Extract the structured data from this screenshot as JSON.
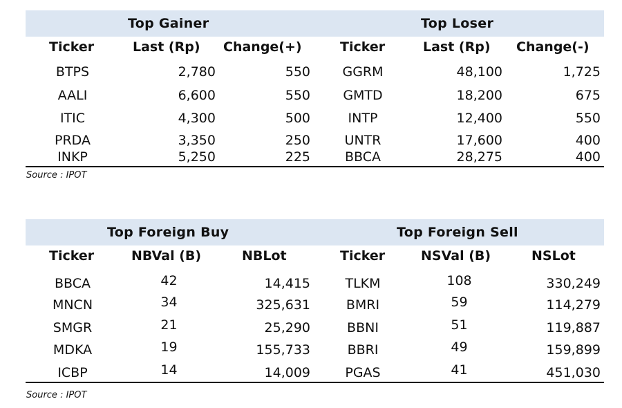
{
  "table1": {
    "left_title": "Top Gainer",
    "right_title": "Top Loser",
    "headers": [
      "Ticker",
      "Last (Rp)",
      "Change(+)",
      "Ticker",
      "Last (Rp)",
      "Change(-)"
    ],
    "rows": [
      [
        "BTPS",
        "2,780",
        "550",
        "GGRM",
        "48,100",
        "1,725"
      ],
      [
        "AALI",
        "6,600",
        "550",
        "GMTD",
        "18,200",
        "675"
      ],
      [
        "ITIC",
        "4,300",
        "500",
        "INTP",
        "12,400",
        "550"
      ],
      [
        "PRDA",
        "3,350",
        "250",
        "UNTR",
        "17,600",
        "400"
      ],
      [
        "INKP",
        "5,250",
        "225",
        "BBCA",
        "28,275",
        "400"
      ]
    ],
    "source": "Source : IPOT"
  },
  "table2": {
    "left_title": "Top Foreign Buy",
    "right_title": "Top Foreign Sell",
    "headers": [
      "Ticker",
      "NBVal (B)",
      "NBLot",
      "Ticker",
      "NSVal (B)",
      "NSLot"
    ],
    "rows": [
      [
        "BBCA",
        "42",
        "14,415",
        "TLKM",
        "108",
        "330,249"
      ],
      [
        "MNCN",
        "34",
        "325,631",
        "BMRI",
        "59",
        "114,279"
      ],
      [
        "SMGR",
        "21",
        "25,290",
        "BBNI",
        "51",
        "119,887"
      ],
      [
        "MDKA",
        "19",
        "155,733",
        "BBRI",
        "49",
        "159,899"
      ],
      [
        "ICBP",
        "14",
        "14,009",
        "PGAS",
        "41",
        "451,030"
      ]
    ],
    "source": "Source : IPOT"
  },
  "colors": {
    "banner": "#dce6f2",
    "text": "#111111"
  }
}
